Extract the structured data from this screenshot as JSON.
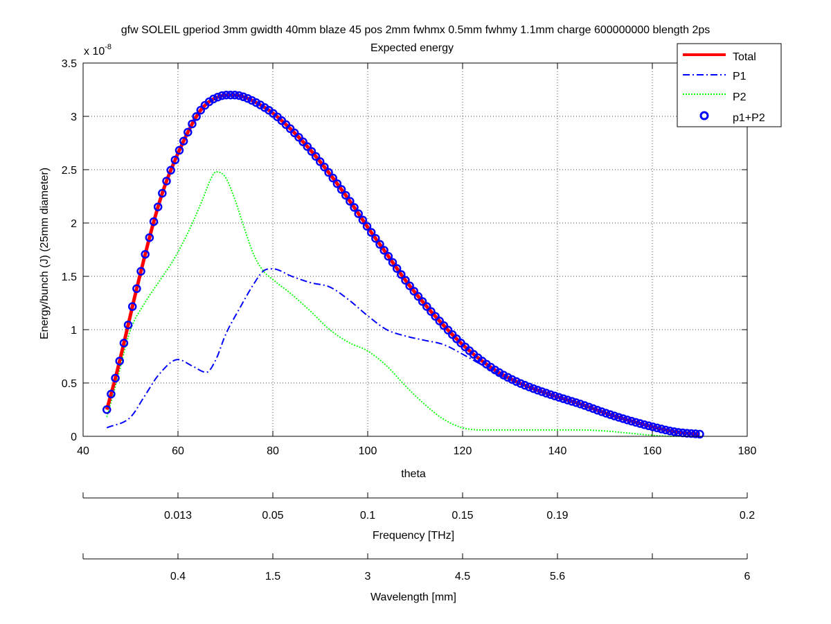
{
  "chart_data": {
    "type": "line",
    "title": "gfw SOLEIL gperiod 3mm gwidth 40mm blaze 45 pos 2mm fwhmx 0.5mm fwhmy 1.1mm charge 600000000 blength 2ps",
    "subtitle": "Expected energy",
    "xlabel": "theta",
    "ylabel": "Energy/bunch (J) (25mm diameter)",
    "y_exponent_label": "x 10",
    "y_exponent_power": "-8",
    "xlim": [
      40,
      180
    ],
    "ylim": [
      0,
      3.5
    ],
    "x_ticks": [
      40,
      60,
      80,
      100,
      120,
      140,
      160,
      180
    ],
    "x_tick_labels": [
      "40",
      "60",
      "80",
      "100",
      "120",
      "140",
      "160",
      "180"
    ],
    "y_ticks": [
      0,
      0.5,
      1,
      1.5,
      2,
      2.5,
      3,
      3.5
    ],
    "y_tick_labels": [
      "0",
      "0.5",
      "1",
      "1.5",
      "2",
      "2.5",
      "3",
      "3.5"
    ],
    "grid": true,
    "legend_position": "top-right",
    "series": [
      {
        "name": "Total",
        "color": "#ff0000",
        "style": "solid-thick",
        "x": [
          45,
          47,
          49,
          51,
          53,
          55,
          57,
          59,
          61,
          63,
          65,
          67,
          69,
          70,
          72,
          74,
          76,
          78,
          80,
          84,
          88,
          92,
          96,
          100,
          104,
          108,
          112,
          116,
          120,
          124,
          128,
          132,
          136,
          140,
          145,
          150,
          155,
          160,
          165,
          170
        ],
        "y": [
          0.25,
          0.58,
          0.95,
          1.33,
          1.69,
          2.03,
          2.32,
          2.55,
          2.75,
          2.93,
          3.07,
          3.15,
          3.19,
          3.2,
          3.2,
          3.18,
          3.14,
          3.09,
          3.03,
          2.87,
          2.68,
          2.46,
          2.22,
          1.96,
          1.71,
          1.46,
          1.24,
          1.04,
          0.86,
          0.71,
          0.59,
          0.5,
          0.43,
          0.37,
          0.3,
          0.22,
          0.15,
          0.09,
          0.04,
          0.02
        ]
      },
      {
        "name": "P1",
        "color": "#0000ff",
        "style": "dashdot",
        "x": [
          45,
          50,
          53,
          56,
          60,
          63,
          66,
          68,
          70,
          73,
          76,
          78,
          80,
          84,
          88,
          92,
          96,
          100,
          104,
          108,
          112,
          116,
          120,
          124,
          128,
          132,
          136,
          140,
          145,
          150,
          155,
          160,
          165,
          170
        ],
        "y": [
          0.08,
          0.18,
          0.38,
          0.58,
          0.72,
          0.66,
          0.6,
          0.72,
          0.95,
          1.2,
          1.43,
          1.55,
          1.57,
          1.5,
          1.44,
          1.4,
          1.28,
          1.13,
          1.0,
          0.94,
          0.9,
          0.86,
          0.77,
          0.67,
          0.57,
          0.49,
          0.42,
          0.36,
          0.3,
          0.22,
          0.15,
          0.09,
          0.04,
          0.01
        ]
      },
      {
        "name": "P2",
        "color": "#00ff00",
        "style": "dotted",
        "x": [
          45,
          47,
          50,
          53,
          56,
          59,
          62,
          65,
          67,
          68,
          70,
          72,
          74,
          76,
          78,
          80,
          84,
          88,
          92,
          96,
          100,
          104,
          108,
          112,
          116,
          120,
          124,
          128,
          132,
          136,
          140,
          145,
          150,
          155,
          160,
          165,
          170
        ],
        "y": [
          0.18,
          0.5,
          1.0,
          1.25,
          1.45,
          1.65,
          1.9,
          2.2,
          2.42,
          2.48,
          2.43,
          2.22,
          1.95,
          1.7,
          1.55,
          1.47,
          1.33,
          1.17,
          1.0,
          0.88,
          0.8,
          0.66,
          0.47,
          0.3,
          0.16,
          0.08,
          0.06,
          0.06,
          0.06,
          0.06,
          0.06,
          0.06,
          0.05,
          0.03,
          0.01,
          0.0,
          0.0
        ]
      },
      {
        "name": "p1+P2",
        "color": "#0000ff",
        "style": "circle-markers",
        "x_range": [
          45,
          170
        ],
        "note_marker_count": 140
      }
    ]
  },
  "frequency_axis": {
    "label": "Frequency [THz]",
    "tick_labels": [
      "0.013",
      "0.05",
      "0.1",
      "0.15",
      "0.19",
      "0.2"
    ]
  },
  "wavelength_axis": {
    "label": "Wavelength [mm]",
    "tick_labels": [
      "0.4",
      "1.5",
      "3",
      "4.5",
      "5.6",
      "6"
    ]
  }
}
